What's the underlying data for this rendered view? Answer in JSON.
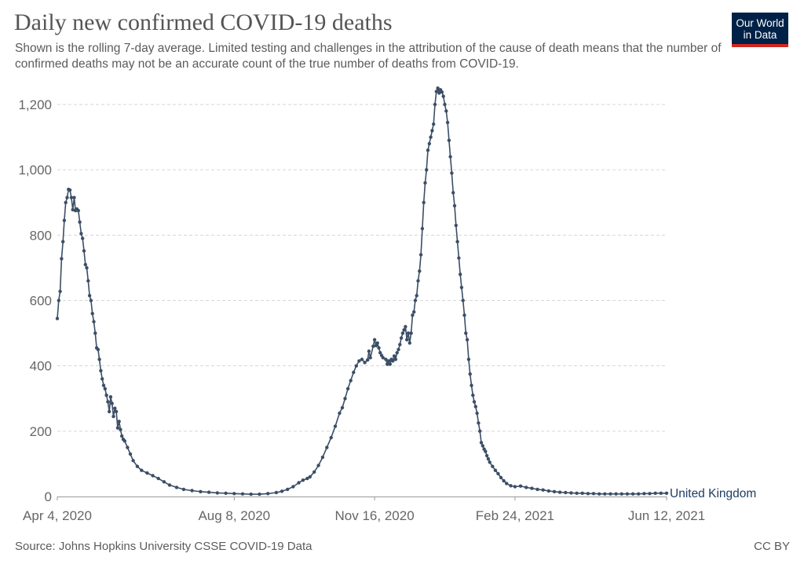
{
  "chart_data": {
    "type": "line",
    "title": "Daily new confirmed COVID-19 deaths",
    "subtitle": "Shown is the rolling 7-day average. Limited testing and challenges in the attribution of the cause of death means that the number of confirmed deaths may not be an accurate count of the true number of deaths from COVID-19.",
    "xlabel": "",
    "ylabel": "",
    "xlim": [
      0,
      434
    ],
    "ylim": [
      0,
      1250
    ],
    "grid": true,
    "x_ticks": [
      {
        "day": 0,
        "label": "Apr 4, 2020"
      },
      {
        "day": 126,
        "label": "Aug 8, 2020"
      },
      {
        "day": 226,
        "label": "Nov 16, 2020"
      },
      {
        "day": 326,
        "label": "Feb 24, 2021"
      },
      {
        "day": 434,
        "label": "Jun 12, 2021"
      }
    ],
    "y_ticks": [
      {
        "value": 0,
        "label": "0"
      },
      {
        "value": 200,
        "label": "200"
      },
      {
        "value": 400,
        "label": "400"
      },
      {
        "value": 600,
        "label": "600"
      },
      {
        "value": 800,
        "label": "800"
      },
      {
        "value": 1000,
        "label": "1,000"
      },
      {
        "value": 1200,
        "label": "1,200"
      }
    ],
    "series": [
      {
        "name": "United Kingdom",
        "color": "#3c4e66",
        "points": [
          [
            0,
            545
          ],
          [
            1,
            600
          ],
          [
            2,
            628
          ],
          [
            3,
            728
          ],
          [
            4,
            780
          ],
          [
            5,
            845
          ],
          [
            6,
            900
          ],
          [
            7,
            915
          ],
          [
            8,
            940
          ],
          [
            9,
            938
          ],
          [
            10,
            915
          ],
          [
            11,
            878
          ],
          [
            12,
            915
          ],
          [
            13,
            875
          ],
          [
            14,
            880
          ],
          [
            15,
            875
          ],
          [
            16,
            840
          ],
          [
            17,
            805
          ],
          [
            18,
            790
          ],
          [
            19,
            752
          ],
          [
            20,
            710
          ],
          [
            21,
            700
          ],
          [
            22,
            660
          ],
          [
            23,
            615
          ],
          [
            24,
            600
          ],
          [
            25,
            560
          ],
          [
            26,
            535
          ],
          [
            27,
            500
          ],
          [
            28,
            455
          ],
          [
            29,
            450
          ],
          [
            30,
            420
          ],
          [
            31,
            385
          ],
          [
            32,
            360
          ],
          [
            33,
            340
          ],
          [
            34,
            330
          ],
          [
            35,
            310
          ],
          [
            36,
            290
          ],
          [
            37,
            260
          ],
          [
            38,
            305
          ],
          [
            39,
            285
          ],
          [
            40,
            245
          ],
          [
            41,
            270
          ],
          [
            42,
            260
          ],
          [
            43,
            210
          ],
          [
            44,
            230
          ],
          [
            45,
            205
          ],
          [
            46,
            185
          ],
          [
            47,
            175
          ],
          [
            48,
            170
          ],
          [
            50,
            150
          ],
          [
            52,
            130
          ],
          [
            54,
            110
          ],
          [
            57,
            92
          ],
          [
            60,
            80
          ],
          [
            64,
            72
          ],
          [
            68,
            64
          ],
          [
            72,
            55
          ],
          [
            76,
            45
          ],
          [
            80,
            35
          ],
          [
            85,
            28
          ],
          [
            90,
            22
          ],
          [
            96,
            18
          ],
          [
            102,
            15
          ],
          [
            108,
            13
          ],
          [
            114,
            11
          ],
          [
            120,
            10
          ],
          [
            126,
            9
          ],
          [
            132,
            8
          ],
          [
            138,
            7
          ],
          [
            144,
            7
          ],
          [
            150,
            9
          ],
          [
            156,
            12
          ],
          [
            160,
            16
          ],
          [
            164,
            22
          ],
          [
            168,
            30
          ],
          [
            172,
            42
          ],
          [
            175,
            50
          ],
          [
            178,
            55
          ],
          [
            180,
            60
          ],
          [
            183,
            75
          ],
          [
            186,
            95
          ],
          [
            189,
            120
          ],
          [
            192,
            150
          ],
          [
            195,
            180
          ],
          [
            198,
            215
          ],
          [
            201,
            255
          ],
          [
            203,
            272
          ],
          [
            205,
            300
          ],
          [
            207,
            330
          ],
          [
            209,
            355
          ],
          [
            211,
            380
          ],
          [
            213,
            400
          ],
          [
            215,
            415
          ],
          [
            217,
            420
          ],
          [
            219,
            410
          ],
          [
            221,
            418
          ],
          [
            222,
            445
          ],
          [
            223,
            425
          ],
          [
            225,
            460
          ],
          [
            226,
            480
          ],
          [
            227,
            462
          ],
          [
            228,
            470
          ],
          [
            229,
            455
          ],
          [
            230,
            440
          ],
          [
            231,
            432
          ],
          [
            232,
            425
          ],
          [
            234,
            420
          ],
          [
            235,
            405
          ],
          [
            236,
            415
          ],
          [
            237,
            405
          ],
          [
            238,
            420
          ],
          [
            239,
            415
          ],
          [
            240,
            430
          ],
          [
            241,
            420
          ],
          [
            242,
            440
          ],
          [
            243,
            450
          ],
          [
            244,
            465
          ],
          [
            245,
            485
          ],
          [
            246,
            500
          ],
          [
            247,
            510
          ],
          [
            248,
            520
          ],
          [
            249,
            480
          ],
          [
            250,
            500
          ],
          [
            251,
            470
          ],
          [
            252,
            500
          ],
          [
            253,
            555
          ],
          [
            254,
            565
          ],
          [
            255,
            600
          ],
          [
            256,
            615
          ],
          [
            257,
            660
          ],
          [
            258,
            690
          ],
          [
            259,
            740
          ],
          [
            260,
            820
          ],
          [
            261,
            900
          ],
          [
            262,
            960
          ],
          [
            263,
            1000
          ],
          [
            264,
            1060
          ],
          [
            265,
            1080
          ],
          [
            266,
            1100
          ],
          [
            267,
            1120
          ],
          [
            268,
            1140
          ],
          [
            269,
            1200
          ],
          [
            270,
            1240
          ],
          [
            271,
            1250
          ],
          [
            272,
            1235
          ],
          [
            273,
            1245
          ],
          [
            274,
            1238
          ],
          [
            275,
            1225
          ],
          [
            276,
            1200
          ],
          [
            277,
            1180
          ],
          [
            278,
            1145
          ],
          [
            279,
            1090
          ],
          [
            280,
            1040
          ],
          [
            281,
            990
          ],
          [
            282,
            930
          ],
          [
            283,
            890
          ],
          [
            284,
            830
          ],
          [
            285,
            780
          ],
          [
            286,
            730
          ],
          [
            287,
            680
          ],
          [
            288,
            640
          ],
          [
            289,
            600
          ],
          [
            290,
            555
          ],
          [
            291,
            500
          ],
          [
            292,
            480
          ],
          [
            293,
            420
          ],
          [
            294,
            375
          ],
          [
            295,
            340
          ],
          [
            296,
            310
          ],
          [
            297,
            290
          ],
          [
            298,
            275
          ],
          [
            299,
            255
          ],
          [
            300,
            225
          ],
          [
            301,
            200
          ],
          [
            302,
            165
          ],
          [
            303,
            155
          ],
          [
            304,
            145
          ],
          [
            305,
            138
          ],
          [
            306,
            125
          ],
          [
            307,
            115
          ],
          [
            308,
            105
          ],
          [
            310,
            92
          ],
          [
            312,
            80
          ],
          [
            314,
            70
          ],
          [
            316,
            58
          ],
          [
            318,
            48
          ],
          [
            320,
            40
          ],
          [
            323,
            33
          ],
          [
            326,
            30
          ],
          [
            330,
            32
          ],
          [
            334,
            28
          ],
          [
            338,
            25
          ],
          [
            342,
            22
          ],
          [
            346,
            20
          ],
          [
            350,
            17
          ],
          [
            354,
            15
          ],
          [
            358,
            13
          ],
          [
            362,
            12
          ],
          [
            366,
            11
          ],
          [
            370,
            10
          ],
          [
            374,
            10
          ],
          [
            378,
            9
          ],
          [
            382,
            9
          ],
          [
            386,
            8
          ],
          [
            390,
            8
          ],
          [
            394,
            8
          ],
          [
            398,
            8
          ],
          [
            402,
            8
          ],
          [
            406,
            8
          ],
          [
            410,
            8
          ],
          [
            414,
            8
          ],
          [
            418,
            9
          ],
          [
            422,
            9
          ],
          [
            426,
            10
          ],
          [
            430,
            10
          ],
          [
            434,
            10
          ]
        ]
      }
    ]
  },
  "header": {
    "title": "Daily new confirmed COVID-19 deaths",
    "subtitle": "Shown is the rolling 7-day average. Limited testing and challenges in the attribution of the cause of death means that the number of confirmed deaths may not be an accurate count of the true number of deaths from COVID-19."
  },
  "logo": {
    "line1": "Our World",
    "line2": "in Data",
    "bg_color": "#002147",
    "accent_color": "#ce261e"
  },
  "footer": {
    "source": "Source: Johns Hopkins University CSSE COVID-19 Data",
    "license": "CC BY"
  }
}
